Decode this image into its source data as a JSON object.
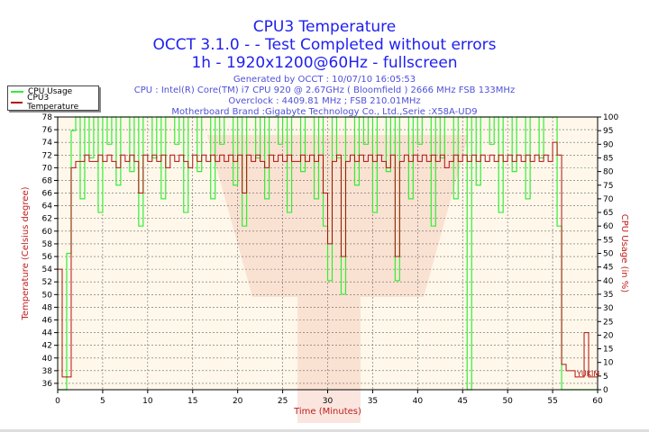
{
  "header": {
    "title": "CPU3 Temperature",
    "subtitle1": "OCCT 3.1.0 -  - Test Completed without errors",
    "subtitle2": "1h - 1920x1200@60Hz - fullscreen",
    "info": [
      "Generated by OCCT : 10/07/10 16:05:53",
      "CPU : Intel(R) Core(TM) i7 CPU 920 @ 2.67GHz ( Bloomfield ) 2666 MHz FSB 133MHz",
      "Overclock : 4409.81 MHz ; FSB 210.01MHz",
      "Motherboard Brand :Gigabyte Technology Co., Ltd.,Serie :X58A-UD9"
    ]
  },
  "watermark_text": "YUKIM",
  "colors": {
    "usage": "#33ee33",
    "temp": "#b01010",
    "bg": "#fff8ea",
    "grid": "#666666"
  },
  "chart_data": {
    "type": "line",
    "title": "CPU3 Temperature",
    "xlabel": "Time (Minutes)",
    "ylabel": "Temperature (Celsius degree)",
    "y2label": "CPU Usage (in %)",
    "xlim": [
      0,
      60
    ],
    "ylim": [
      35,
      78
    ],
    "y2lim": [
      0,
      100
    ],
    "xticks": [
      0,
      5,
      10,
      15,
      20,
      25,
      30,
      35,
      40,
      45,
      50,
      55,
      60
    ],
    "yticks": [
      36,
      38,
      40,
      42,
      44,
      46,
      48,
      50,
      52,
      54,
      56,
      58,
      60,
      62,
      64,
      66,
      68,
      70,
      72,
      74,
      76,
      78
    ],
    "y2ticks": [
      0,
      5,
      10,
      15,
      20,
      25,
      30,
      35,
      40,
      45,
      50,
      55,
      60,
      65,
      70,
      75,
      80,
      85,
      90,
      95,
      100
    ],
    "grid": true,
    "legend": {
      "placement": "top-left",
      "entries": [
        "CPU Usage",
        "CPU3 Temperature"
      ]
    },
    "x_step": 0.5,
    "series": [
      {
        "name": "CPU Usage",
        "axis": "right",
        "values": [
          0,
          0,
          50,
          95,
          100,
          70,
          100,
          85,
          100,
          65,
          100,
          90,
          100,
          75,
          100,
          100,
          80,
          100,
          60,
          100,
          100,
          85,
          100,
          70,
          100,
          100,
          90,
          100,
          65,
          100,
          100,
          80,
          100,
          100,
          70,
          100,
          90,
          100,
          100,
          75,
          100,
          60,
          100,
          100,
          85,
          100,
          70,
          100,
          100,
          90,
          100,
          65,
          100,
          100,
          80,
          100,
          100,
          70,
          100,
          60,
          40,
          100,
          85,
          35,
          100,
          100,
          75,
          100,
          90,
          100,
          65,
          100,
          100,
          80,
          100,
          40,
          100,
          100,
          70,
          100,
          90,
          100,
          100,
          60,
          100,
          85,
          100,
          100,
          70,
          100,
          100,
          0,
          100,
          75,
          100,
          100,
          90,
          100,
          65,
          100,
          100,
          80,
          100,
          100,
          70,
          100,
          100,
          85,
          100,
          100,
          100,
          60,
          0,
          0,
          0,
          0,
          0,
          0,
          0,
          0,
          0
        ]
      },
      {
        "name": "CPU3 Temperature",
        "axis": "left",
        "values": [
          54,
          37,
          37,
          70,
          71,
          71,
          72,
          71,
          71,
          72,
          71,
          72,
          71,
          70,
          72,
          71,
          72,
          71,
          66,
          72,
          71,
          72,
          71,
          72,
          70,
          72,
          71,
          72,
          71,
          70,
          72,
          71,
          72,
          71,
          72,
          71,
          72,
          71,
          72,
          71,
          72,
          66,
          72,
          71,
          72,
          71,
          70,
          72,
          71,
          72,
          71,
          72,
          71,
          71,
          72,
          71,
          72,
          71,
          72,
          66,
          58,
          71,
          72,
          56,
          71,
          72,
          71,
          72,
          71,
          72,
          71,
          72,
          71,
          70,
          72,
          56,
          71,
          72,
          71,
          72,
          71,
          72,
          71,
          72,
          71,
          72,
          70,
          71,
          72,
          71,
          72,
          71,
          72,
          71,
          72,
          71,
          72,
          71,
          72,
          71,
          72,
          71,
          72,
          71,
          72,
          71,
          72,
          71,
          72,
          71,
          74,
          72,
          39,
          38,
          38,
          37,
          37,
          44,
          37,
          37,
          37
        ]
      }
    ]
  }
}
